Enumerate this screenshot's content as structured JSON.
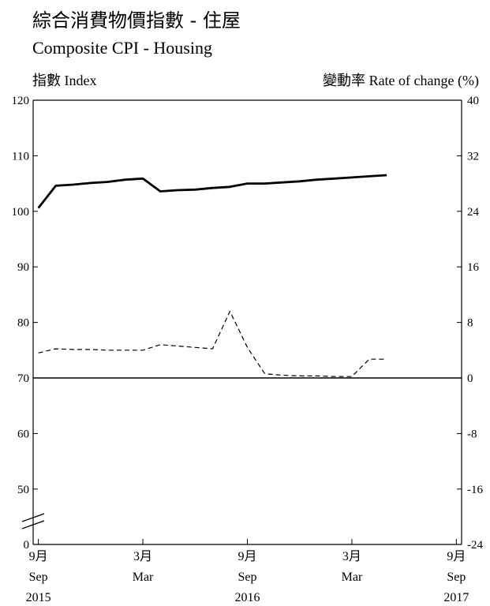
{
  "header": {
    "title_zh": "綜合消費物價指數 - 住屋",
    "title_en": "Composite CPI - Housing",
    "left_axis_zh": "指數",
    "left_axis_en": "Index",
    "right_axis_zh": "變動率",
    "right_axis_en": "Rate of change (%)"
  },
  "chart_data": {
    "type": "line",
    "x_axis": {
      "ticks": [
        {
          "month_index": 0,
          "month_zh": "9月",
          "month_en": "Sep",
          "year": "2015"
        },
        {
          "month_index": 6,
          "month_zh": "3月",
          "month_en": "Mar",
          "year": ""
        },
        {
          "month_index": 12,
          "month_zh": "9月",
          "month_en": "Sep",
          "year": "2016"
        },
        {
          "month_index": 18,
          "month_zh": "3月",
          "month_en": "Mar",
          "year": ""
        },
        {
          "month_index": 24,
          "month_zh": "9月",
          "month_en": "Sep",
          "year": "2017"
        }
      ],
      "range_months": [
        -0.3,
        24.3
      ]
    },
    "left_axis": {
      "label": "指數 Index",
      "ticks": [
        "120",
        "110",
        "100",
        "90",
        "80",
        "70",
        "60",
        "50",
        "0"
      ],
      "ylim": [
        40,
        120
      ],
      "axis_break": true
    },
    "right_axis": {
      "label": "變動率 Rate of change (%)",
      "ticks": [
        "40",
        "32",
        "24",
        "16",
        "8",
        "0",
        "-8",
        "-16",
        "-24"
      ],
      "ylim": [
        -24,
        40
      ]
    },
    "series": [
      {
        "style": "solid",
        "axis": "left",
        "x": [
          0,
          1,
          2,
          3,
          4,
          5,
          6,
          7,
          8,
          9,
          10,
          11,
          12,
          13,
          14,
          15,
          16,
          17,
          18,
          19,
          20
        ],
        "values": [
          100.6,
          104.6,
          104.8,
          105.1,
          105.3,
          105.7,
          105.9,
          103.6,
          103.8,
          103.9,
          104.2,
          104.4,
          105.0,
          105.0,
          105.2,
          105.4,
          105.7,
          105.9,
          106.1,
          106.3,
          106.5
        ]
      },
      {
        "style": "dashed",
        "axis": "right",
        "x": [
          0,
          1,
          2,
          3,
          4,
          5,
          6,
          7,
          8,
          9,
          10,
          11,
          12,
          13,
          14,
          15,
          16,
          17,
          18,
          19,
          20
        ],
        "values": [
          3.6,
          4.2,
          4.1,
          4.1,
          4.0,
          4.0,
          4.0,
          4.8,
          4.6,
          4.4,
          4.2,
          9.6,
          4.4,
          0.6,
          0.4,
          0.3,
          0.3,
          0.2,
          0.2,
          2.7,
          2.7
        ]
      }
    ]
  }
}
